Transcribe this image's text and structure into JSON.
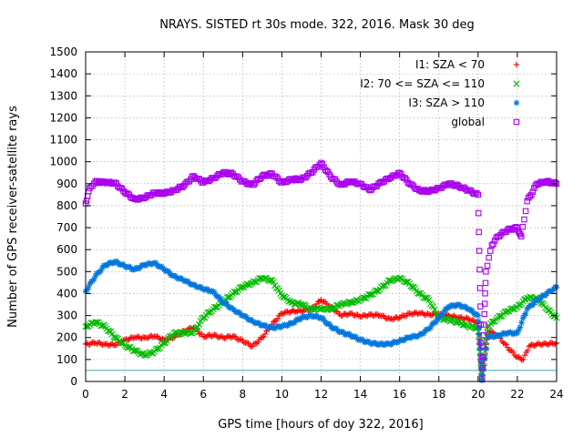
{
  "chart_data": {
    "type": "scatter",
    "title": "NRAYS. SISTED rt 30s mode. 322, 2016. Mask 30 deg",
    "xlabel": "GPS time [hours of doy 322, 2016]",
    "ylabel": "Number of GPS receiver-satellite rays",
    "xlim": [
      0,
      24
    ],
    "ylim": [
      0,
      1500
    ],
    "xticks": [
      "0",
      "2",
      "4",
      "6",
      "8",
      "10",
      "12",
      "14",
      "16",
      "18",
      "20",
      "22",
      "24"
    ],
    "yticks": [
      "0",
      "100",
      "200",
      "300",
      "400",
      "500",
      "600",
      "700",
      "800",
      "900",
      "1000",
      "1100",
      "1200",
      "1300",
      "1400",
      "1500"
    ],
    "grid": true,
    "legend_position": "top-right",
    "reference_line": {
      "y": 50,
      "color": "#44aaaa"
    },
    "series": [
      {
        "name": "I1: SZA < 70",
        "marker": "+",
        "color": "#ff0000",
        "x": [
          0,
          0.5,
          1,
          1.5,
          2,
          2.5,
          3,
          3.5,
          4,
          4.5,
          5,
          5.5,
          6,
          6.5,
          7,
          7.5,
          8,
          8.5,
          9,
          9.5,
          10,
          10.5,
          11,
          11.5,
          12,
          12.5,
          13,
          13.5,
          14,
          14.5,
          15,
          15.5,
          16,
          16.5,
          17,
          17.5,
          18,
          18.5,
          19,
          19.5,
          20,
          20.2,
          20.5,
          21,
          21.5,
          22,
          22.3,
          22.6,
          23,
          23.5,
          24
        ],
        "y": [
          170,
          175,
          170,
          165,
          190,
          200,
          200,
          205,
          190,
          200,
          230,
          245,
          205,
          210,
          200,
          205,
          185,
          160,
          200,
          260,
          310,
          320,
          320,
          330,
          370,
          340,
          300,
          310,
          295,
          305,
          300,
          285,
          290,
          310,
          310,
          305,
          305,
          300,
          290,
          285,
          265,
          10,
          230,
          210,
          155,
          110,
          100,
          160,
          170,
          170,
          175
        ]
      },
      {
        "name": "I2: 70 <= SZA <= 110",
        "marker": "x",
        "color": "#00bb00",
        "x": [
          0,
          0.5,
          1,
          1.5,
          2,
          2.5,
          3,
          3.5,
          4,
          4.5,
          5,
          5.5,
          6,
          6.5,
          7,
          7.5,
          8,
          8.5,
          9,
          9.5,
          10,
          10.5,
          11,
          11.5,
          12,
          12.5,
          13,
          13.5,
          14,
          14.5,
          15,
          15.5,
          16,
          16.5,
          17,
          17.5,
          18,
          18.5,
          19,
          19.5,
          20,
          20.2,
          20.5,
          21,
          21.5,
          22,
          22.5,
          23,
          23.5,
          24
        ],
        "y": [
          250,
          270,
          250,
          200,
          165,
          140,
          120,
          135,
          175,
          220,
          220,
          225,
          290,
          330,
          360,
          400,
          430,
          450,
          470,
          460,
          390,
          360,
          350,
          330,
          330,
          330,
          350,
          360,
          370,
          395,
          420,
          460,
          470,
          445,
          400,
          370,
          290,
          280,
          270,
          250,
          245,
          20,
          250,
          290,
          320,
          340,
          380,
          380,
          330,
          290
        ]
      },
      {
        "name": "I3: SZA > 110",
        "marker": "*",
        "color": "#0077dd",
        "x": [
          0,
          0.5,
          1,
          1.5,
          2,
          2.5,
          3,
          3.5,
          4,
          4.5,
          5,
          5.5,
          6,
          6.5,
          7,
          7.5,
          8,
          8.5,
          9,
          9.5,
          10,
          10.5,
          11,
          11.5,
          12,
          12.5,
          13,
          13.5,
          14,
          14.5,
          15,
          15.5,
          16,
          16.5,
          17,
          17.5,
          18,
          18.5,
          19,
          19.5,
          20,
          20.2,
          20.5,
          21,
          21.5,
          22,
          22.5,
          23,
          23.5,
          24
        ],
        "y": [
          410,
          480,
          530,
          545,
          525,
          510,
          530,
          540,
          510,
          480,
          460,
          440,
          420,
          410,
          360,
          330,
          300,
          275,
          255,
          245,
          250,
          265,
          290,
          300,
          290,
          250,
          225,
          210,
          190,
          175,
          170,
          170,
          185,
          200,
          210,
          240,
          290,
          340,
          350,
          330,
          300,
          5,
          200,
          210,
          220,
          220,
          330,
          370,
          400,
          430
        ]
      },
      {
        "name": "global",
        "marker": "square",
        "color": "#aa00ee",
        "x": [
          0,
          0.2,
          0.5,
          1,
          1.5,
          2,
          2.5,
          3,
          3.5,
          4,
          4.5,
          5,
          5.5,
          6,
          6.5,
          7,
          7.5,
          8,
          8.5,
          9,
          9.5,
          10,
          10.5,
          11,
          11.5,
          12,
          12.5,
          13,
          13.5,
          14,
          14.5,
          15,
          15.5,
          16,
          16.5,
          17,
          17.5,
          18,
          18.5,
          19,
          19.5,
          20,
          20.2,
          20.4,
          20.7,
          21,
          21.5,
          22,
          22.2,
          22.5,
          23,
          23.5,
          24
        ],
        "y": [
          810,
          880,
          910,
          905,
          905,
          860,
          830,
          835,
          860,
          855,
          870,
          890,
          935,
          905,
          925,
          950,
          945,
          910,
          895,
          935,
          945,
          905,
          920,
          920,
          950,
          995,
          930,
          895,
          910,
          900,
          870,
          905,
          925,
          950,
          900,
          870,
          865,
          880,
          900,
          890,
          870,
          850,
          10,
          500,
          620,
          660,
          690,
          700,
          660,
          820,
          900,
          910,
          900
        ]
      }
    ]
  }
}
